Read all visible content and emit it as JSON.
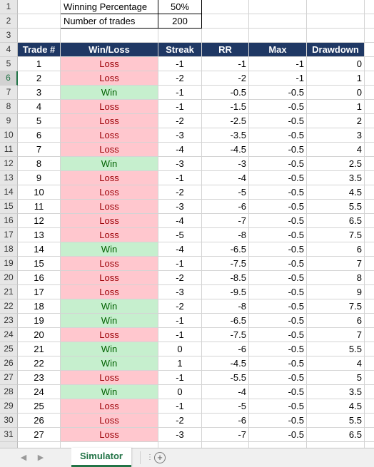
{
  "settings": {
    "win_pct_label": "Winning Percentage",
    "win_pct_value": "50%",
    "num_trades_label": "Number of trades",
    "num_trades_value": "200"
  },
  "headers": [
    "Trade #",
    "Win/Loss",
    "Streak",
    "RR",
    "Max",
    "Drawdown"
  ],
  "trades": [
    {
      "row": "5",
      "trade": "1",
      "result": "Loss",
      "streak": "-1",
      "rr": "-1",
      "max": "-1",
      "dd": "0"
    },
    {
      "row": "6",
      "trade": "2",
      "result": "Loss",
      "streak": "-2",
      "rr": "-2",
      "max": "-1",
      "dd": "1"
    },
    {
      "row": "7",
      "trade": "3",
      "result": "Win",
      "streak": "-1",
      "rr": "-0.5",
      "max": "-0.5",
      "dd": "0"
    },
    {
      "row": "8",
      "trade": "4",
      "result": "Loss",
      "streak": "-1",
      "rr": "-1.5",
      "max": "-0.5",
      "dd": "1"
    },
    {
      "row": "9",
      "trade": "5",
      "result": "Loss",
      "streak": "-2",
      "rr": "-2.5",
      "max": "-0.5",
      "dd": "2"
    },
    {
      "row": "10",
      "trade": "6",
      "result": "Loss",
      "streak": "-3",
      "rr": "-3.5",
      "max": "-0.5",
      "dd": "3"
    },
    {
      "row": "11",
      "trade": "7",
      "result": "Loss",
      "streak": "-4",
      "rr": "-4.5",
      "max": "-0.5",
      "dd": "4"
    },
    {
      "row": "12",
      "trade": "8",
      "result": "Win",
      "streak": "-3",
      "rr": "-3",
      "max": "-0.5",
      "dd": "2.5"
    },
    {
      "row": "13",
      "trade": "9",
      "result": "Loss",
      "streak": "-1",
      "rr": "-4",
      "max": "-0.5",
      "dd": "3.5"
    },
    {
      "row": "14",
      "trade": "10",
      "result": "Loss",
      "streak": "-2",
      "rr": "-5",
      "max": "-0.5",
      "dd": "4.5"
    },
    {
      "row": "15",
      "trade": "11",
      "result": "Loss",
      "streak": "-3",
      "rr": "-6",
      "max": "-0.5",
      "dd": "5.5"
    },
    {
      "row": "16",
      "trade": "12",
      "result": "Loss",
      "streak": "-4",
      "rr": "-7",
      "max": "-0.5",
      "dd": "6.5"
    },
    {
      "row": "17",
      "trade": "13",
      "result": "Loss",
      "streak": "-5",
      "rr": "-8",
      "max": "-0.5",
      "dd": "7.5"
    },
    {
      "row": "18",
      "trade": "14",
      "result": "Win",
      "streak": "-4",
      "rr": "-6.5",
      "max": "-0.5",
      "dd": "6"
    },
    {
      "row": "19",
      "trade": "15",
      "result": "Loss",
      "streak": "-1",
      "rr": "-7.5",
      "max": "-0.5",
      "dd": "7"
    },
    {
      "row": "20",
      "trade": "16",
      "result": "Loss",
      "streak": "-2",
      "rr": "-8.5",
      "max": "-0.5",
      "dd": "8"
    },
    {
      "row": "21",
      "trade": "17",
      "result": "Loss",
      "streak": "-3",
      "rr": "-9.5",
      "max": "-0.5",
      "dd": "9"
    },
    {
      "row": "22",
      "trade": "18",
      "result": "Win",
      "streak": "-2",
      "rr": "-8",
      "max": "-0.5",
      "dd": "7.5"
    },
    {
      "row": "23",
      "trade": "19",
      "result": "Win",
      "streak": "-1",
      "rr": "-6.5",
      "max": "-0.5",
      "dd": "6"
    },
    {
      "row": "24",
      "trade": "20",
      "result": "Loss",
      "streak": "-1",
      "rr": "-7.5",
      "max": "-0.5",
      "dd": "7"
    },
    {
      "row": "25",
      "trade": "21",
      "result": "Win",
      "streak": "0",
      "rr": "-6",
      "max": "-0.5",
      "dd": "5.5"
    },
    {
      "row": "26",
      "trade": "22",
      "result": "Win",
      "streak": "1",
      "rr": "-4.5",
      "max": "-0.5",
      "dd": "4"
    },
    {
      "row": "27",
      "trade": "23",
      "result": "Loss",
      "streak": "-1",
      "rr": "-5.5",
      "max": "-0.5",
      "dd": "5"
    },
    {
      "row": "28",
      "trade": "24",
      "result": "Win",
      "streak": "0",
      "rr": "-4",
      "max": "-0.5",
      "dd": "3.5"
    },
    {
      "row": "29",
      "trade": "25",
      "result": "Loss",
      "streak": "-1",
      "rr": "-5",
      "max": "-0.5",
      "dd": "4.5"
    },
    {
      "row": "30",
      "trade": "26",
      "result": "Loss",
      "streak": "-2",
      "rr": "-6",
      "max": "-0.5",
      "dd": "5.5"
    },
    {
      "row": "31",
      "trade": "27",
      "result": "Loss",
      "streak": "-3",
      "rr": "-7",
      "max": "-0.5",
      "dd": "6.5"
    }
  ],
  "sheet_tab": "Simulator",
  "icons": {
    "prev": "chevron-left-icon",
    "next": "chevron-right-icon",
    "add": "plus-circle-icon"
  },
  "colors": {
    "header_bg": "#1f3864",
    "loss_bg": "#ffc7ce",
    "loss_text": "#9c0006",
    "win_bg": "#c6efce",
    "win_text": "#006100",
    "accent": "#217346"
  }
}
